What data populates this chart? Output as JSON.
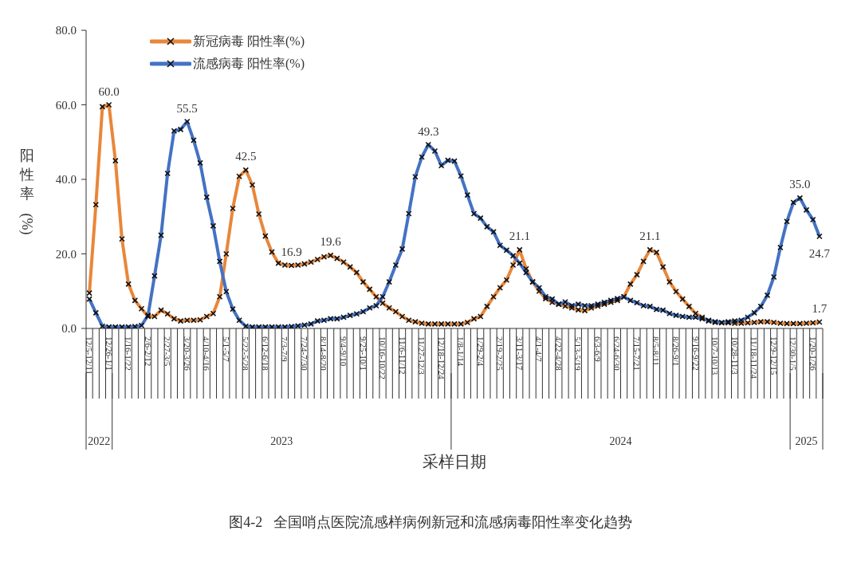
{
  "chart_data": {
    "type": "line",
    "xlabel": "采样日期",
    "ylabel": "阳性率(%)",
    "annotations": [
      "图4-2   全国哨点医院流感样病例新冠和流感病毒阳性率变化趋势",
      "2022",
      "2023",
      "2024",
      "2025"
    ],
    "categories": [
      "12/5-12/11",
      null,
      null,
      "12/26-1/1",
      null,
      null,
      "1/16-1/22",
      null,
      null,
      "2/6-2/12",
      null,
      null,
      "2/27-3/5",
      null,
      null,
      "3/20-3/26",
      null,
      null,
      "4/10-4/16",
      null,
      null,
      "5/1-5/7",
      null,
      null,
      "5/22-5/28",
      null,
      null,
      "6/12-6/18",
      null,
      null,
      "7/3-7/9",
      null,
      null,
      "7/24-7/30",
      null,
      null,
      "8/14-8/20",
      null,
      null,
      "9/4-9/10",
      null,
      null,
      "9/25-10/1",
      null,
      null,
      "10/16-10/22",
      null,
      null,
      "11/6-11/12",
      null,
      null,
      "11/27-12/3",
      null,
      null,
      "12/18-12/24",
      null,
      null,
      "1/8-1/14",
      null,
      null,
      "1/29-2/4",
      null,
      null,
      "2/19-2/25",
      null,
      null,
      "3/11-3/17",
      null,
      null,
      "4/1-4/7",
      null,
      null,
      "4/22-4/28",
      null,
      null,
      "5/13-5/19",
      null,
      null,
      "6/3-6/9",
      null,
      null,
      "6/24-6/30",
      null,
      null,
      "7/15-7/21",
      null,
      null,
      "8/5-8/11",
      null,
      null,
      "8/26-9/1",
      null,
      null,
      "9/16-9/22",
      null,
      null,
      "10/7-10/13",
      null,
      null,
      "10/28-11/3",
      null,
      null,
      "11/18-11/24",
      null,
      null,
      "12/9-12/15",
      null,
      null,
      "12/30-1/5",
      null,
      null,
      "1/20-1/26",
      null
    ],
    "series": [
      {
        "name": "新冠病毒 阳性率(%)",
        "color": "#e8873a",
        "values": [
          9.5,
          33.2,
          59.5,
          60.0,
          45.0,
          24.0,
          11.9,
          7.5,
          5.3,
          3.2,
          3.2,
          4.9,
          3.9,
          2.6,
          2.0,
          2.2,
          2.2,
          2.3,
          3.2,
          4.0,
          8.5,
          20.0,
          32.2,
          40.8,
          42.5,
          38.5,
          30.7,
          24.8,
          20.5,
          17.5,
          17.0,
          16.9,
          17.0,
          17.3,
          17.8,
          18.5,
          19.2,
          19.6,
          18.8,
          17.8,
          16.5,
          15.0,
          12.5,
          10.5,
          8.5,
          6.8,
          5.5,
          4.5,
          3.2,
          2.2,
          1.8,
          1.4,
          1.2,
          1.2,
          1.2,
          1.2,
          1.2,
          1.2,
          1.6,
          2.6,
          3.2,
          5.9,
          8.5,
          10.9,
          13.0,
          17.0,
          21.1,
          16.0,
          12.5,
          10.0,
          8.0,
          7.0,
          6.5,
          6.0,
          5.5,
          5.0,
          4.8,
          5.5,
          6.0,
          6.5,
          7.0,
          7.5,
          8.5,
          11.9,
          14.4,
          18.0,
          21.1,
          20.4,
          16.5,
          12.5,
          9.9,
          7.9,
          5.9,
          4.0,
          3.0,
          2.0,
          1.6,
          1.5,
          1.5,
          1.4,
          1.4,
          1.5,
          1.6,
          1.8,
          1.8,
          1.6,
          1.4,
          1.3,
          1.3,
          1.3,
          1.4,
          1.5,
          1.7
        ],
        "value_labels": [
          null,
          null,
          null,
          "60.0",
          null,
          null,
          null,
          null,
          null,
          null,
          null,
          null,
          null,
          null,
          null,
          null,
          null,
          null,
          null,
          null,
          null,
          null,
          null,
          null,
          "42.5",
          null,
          null,
          null,
          null,
          null,
          null,
          "16.9",
          null,
          null,
          null,
          null,
          null,
          "19.6",
          null,
          null,
          null,
          null,
          null,
          null,
          null,
          null,
          null,
          null,
          null,
          null,
          null,
          null,
          null,
          null,
          null,
          null,
          null,
          null,
          null,
          null,
          null,
          null,
          null,
          null,
          null,
          null,
          "21.1",
          null,
          null,
          null,
          null,
          null,
          null,
          null,
          null,
          null,
          null,
          null,
          null,
          null,
          null,
          null,
          null,
          null,
          null,
          null,
          "21.1",
          null,
          null,
          null,
          null,
          null,
          null,
          null,
          null,
          null,
          null,
          null,
          null,
          null,
          null,
          null,
          null,
          null,
          null,
          null,
          null,
          null,
          null,
          null,
          null,
          null,
          "1.7"
        ]
      },
      {
        "name": "流感病毒 阳性率(%)",
        "color": "#4472c4",
        "values": [
          7.9,
          4.2,
          0.6,
          0.4,
          0.4,
          0.4,
          0.4,
          0.5,
          0.8,
          3.5,
          14.1,
          25.0,
          41.6,
          53.0,
          53.4,
          55.5,
          50.5,
          44.4,
          35.2,
          27.5,
          18.0,
          9.9,
          5.2,
          2.2,
          0.6,
          0.4,
          0.4,
          0.4,
          0.4,
          0.4,
          0.4,
          0.5,
          0.7,
          0.9,
          1.2,
          2.0,
          2.2,
          2.6,
          2.6,
          3.0,
          3.5,
          3.9,
          4.5,
          5.5,
          6.1,
          8.5,
          12.5,
          17.0,
          21.3,
          30.8,
          40.7,
          46.0,
          49.3,
          47.6,
          43.7,
          45.1,
          44.9,
          40.9,
          35.8,
          30.8,
          29.6,
          27.3,
          25.9,
          22.3,
          21.0,
          19.5,
          17.5,
          15.0,
          12.5,
          10.9,
          8.5,
          7.9,
          6.5,
          7.1,
          6.1,
          6.5,
          6.1,
          6.1,
          6.5,
          7.0,
          7.5,
          8.0,
          8.5,
          7.5,
          6.9,
          6.1,
          5.9,
          5.1,
          4.9,
          4.0,
          3.5,
          3.2,
          3.0,
          3.0,
          2.6,
          2.2,
          1.8,
          1.6,
          1.8,
          2.0,
          2.2,
          3.0,
          4.2,
          5.9,
          8.9,
          13.8,
          21.7,
          28.7,
          33.8,
          35.0,
          31.8,
          29.2,
          24.7
        ],
        "value_labels": [
          null,
          null,
          null,
          null,
          null,
          null,
          null,
          null,
          null,
          null,
          null,
          null,
          null,
          null,
          null,
          "55.5",
          null,
          null,
          null,
          null,
          null,
          null,
          null,
          null,
          null,
          null,
          null,
          null,
          null,
          null,
          null,
          null,
          null,
          null,
          null,
          null,
          null,
          null,
          null,
          null,
          null,
          null,
          null,
          null,
          null,
          null,
          null,
          null,
          null,
          null,
          null,
          null,
          "49.3",
          null,
          null,
          null,
          null,
          null,
          null,
          null,
          null,
          null,
          null,
          null,
          null,
          null,
          null,
          null,
          null,
          null,
          null,
          null,
          null,
          null,
          null,
          null,
          null,
          null,
          null,
          null,
          null,
          null,
          null,
          null,
          null,
          null,
          null,
          null,
          null,
          null,
          null,
          null,
          null,
          null,
          null,
          null,
          null,
          null,
          null,
          null,
          null,
          null,
          null,
          null,
          null,
          null,
          null,
          null,
          null,
          "35.0",
          null,
          null,
          "24.7"
        ]
      }
    ],
    "ylim": [
      0,
      80
    ],
    "yticks": [
      {
        "value": 0,
        "label": "0.0"
      },
      {
        "value": 20,
        "label": "20.0"
      },
      {
        "value": 40,
        "label": "40.0"
      },
      {
        "value": 60,
        "label": "60.0"
      },
      {
        "value": 80,
        "label": "80.0"
      }
    ],
    "marker": "cross",
    "line_style": "solid",
    "legend": "top left",
    "grid": false
  }
}
